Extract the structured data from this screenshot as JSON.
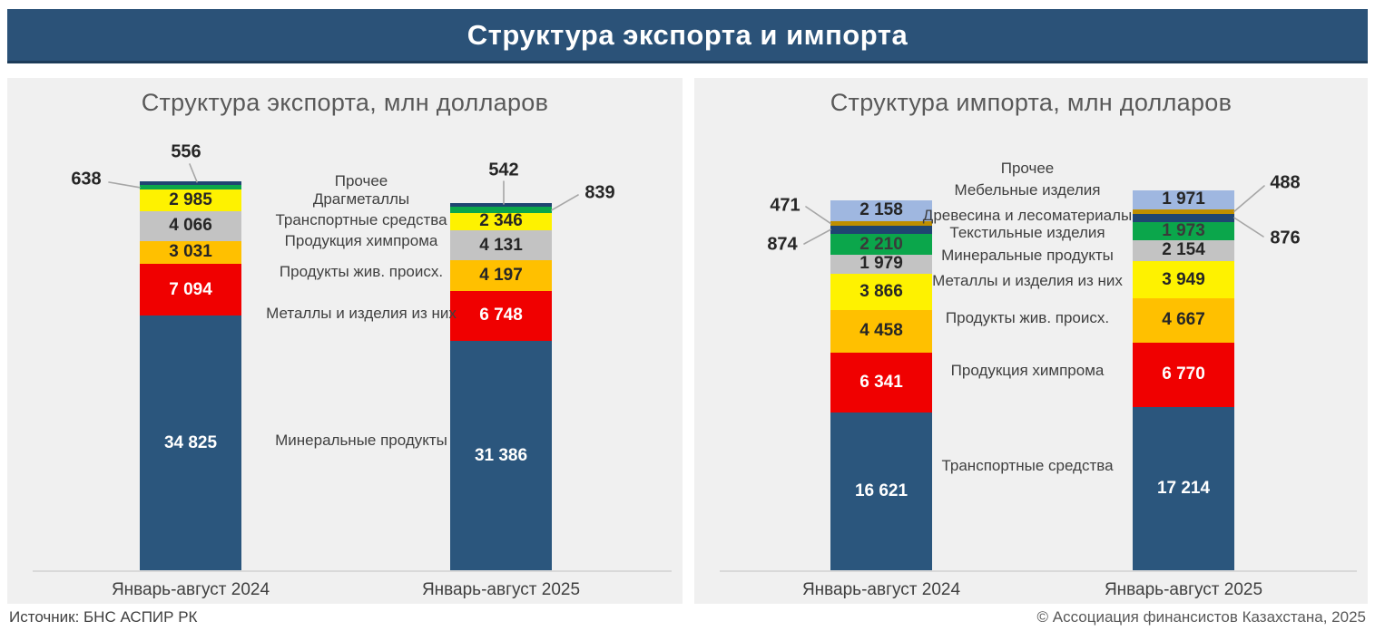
{
  "header": {
    "title": "Структура экспорта и импорта"
  },
  "footer": {
    "source": "Источник: БНС АСПИР РК",
    "copyright": "© Ассоциация финансистов Казахстана, 2025"
  },
  "theme": {
    "header_bg": "#2B5278",
    "panel_bg": "#F0F0F0",
    "title_color": "#595959",
    "axis_line": "#D9D9D9",
    "callout_line": "#A6A6A6",
    "value_dark": "#262626"
  },
  "chart_data": [
    {
      "type": "bar",
      "stacked": true,
      "stack_order": "top-to-bottom",
      "title": "Структура экспорта, млн долларов",
      "unit": "млн долларов",
      "categories": [
        "Январь-август 2024",
        "Январь-август 2025"
      ],
      "grid": false,
      "legend_position": "between-bars-center",
      "series": [
        {
          "name": "Прочее",
          "color": "#1F4571",
          "values": [
            556,
            542
          ],
          "label": "callout",
          "text_color": "#262626"
        },
        {
          "name": "Драгметаллы",
          "color": "#0BA64B",
          "values": [
            638,
            839
          ],
          "label": "callout",
          "text_color": "#262626"
        },
        {
          "name": "Транспортные средства",
          "color": "#FEF200",
          "values": [
            2985,
            2346
          ],
          "label": "inside",
          "text_color": "#262626"
        },
        {
          "name": "Продукция химпрома",
          "color": "#C3C3C3",
          "values": [
            4066,
            4131
          ],
          "label": "inside",
          "text_color": "#262626"
        },
        {
          "name": "Продукты жив. происх.",
          "color": "#FFC000",
          "values": [
            3031,
            4197
          ],
          "label": "inside",
          "text_color": "#262626"
        },
        {
          "name": "Металлы и изделия из них",
          "color": "#F00000",
          "values": [
            7094,
            6748
          ],
          "label": "inside",
          "text_color": "#FFFFFF"
        },
        {
          "name": "Минеральные продукты",
          "color": "#2B567D",
          "values": [
            34825,
            31386
          ],
          "label": "inside",
          "text_color": "#FFFFFF"
        }
      ],
      "totals": [
        53195,
        50189
      ]
    },
    {
      "type": "bar",
      "stacked": true,
      "stack_order": "top-to-bottom",
      "title": "Структура импорта, млн долларов",
      "unit": "млн долларов",
      "categories": [
        "Январь-август 2024",
        "Январь-август 2025"
      ],
      "grid": false,
      "legend_position": "between-bars-center",
      "series": [
        {
          "name": "Прочее",
          "color": "#9FB7E0",
          "values": [
            2158,
            1971
          ],
          "label": "inside",
          "text_color": "#262626"
        },
        {
          "name": "Мебельные изделия",
          "color": "#BF8F00",
          "values": [
            471,
            488
          ],
          "label": "callout",
          "text_color": "#262626"
        },
        {
          "name": "Древесина и лесоматериалы",
          "color": "#1F4571",
          "values": [
            874,
            876
          ],
          "label": "callout",
          "text_color": "#262626"
        },
        {
          "name": "Текстильные изделия",
          "color": "#0BA64B",
          "values": [
            2210,
            1973
          ],
          "label": "inside",
          "text_color": "#3A3A3A"
        },
        {
          "name": "Минеральные продукты",
          "color": "#C3C3C3",
          "values": [
            1979,
            2154
          ],
          "label": "inside",
          "text_color": "#262626"
        },
        {
          "name": "Металлы и изделия из них",
          "color": "#FEF200",
          "values": [
            3866,
            3949
          ],
          "label": "inside",
          "text_color": "#262626"
        },
        {
          "name": "Продукты жив. происх.",
          "color": "#FFC000",
          "values": [
            4458,
            4667
          ],
          "label": "inside",
          "text_color": "#262626"
        },
        {
          "name": "Продукция химпрома",
          "color": "#F00000",
          "values": [
            6341,
            6770
          ],
          "label": "inside",
          "text_color": "#FFFFFF"
        },
        {
          "name": "Транспортные средства",
          "color": "#2B567D",
          "values": [
            16621,
            17214
          ],
          "label": "inside",
          "text_color": "#FFFFFF"
        }
      ],
      "totals": [
        38978,
        40062
      ]
    }
  ]
}
